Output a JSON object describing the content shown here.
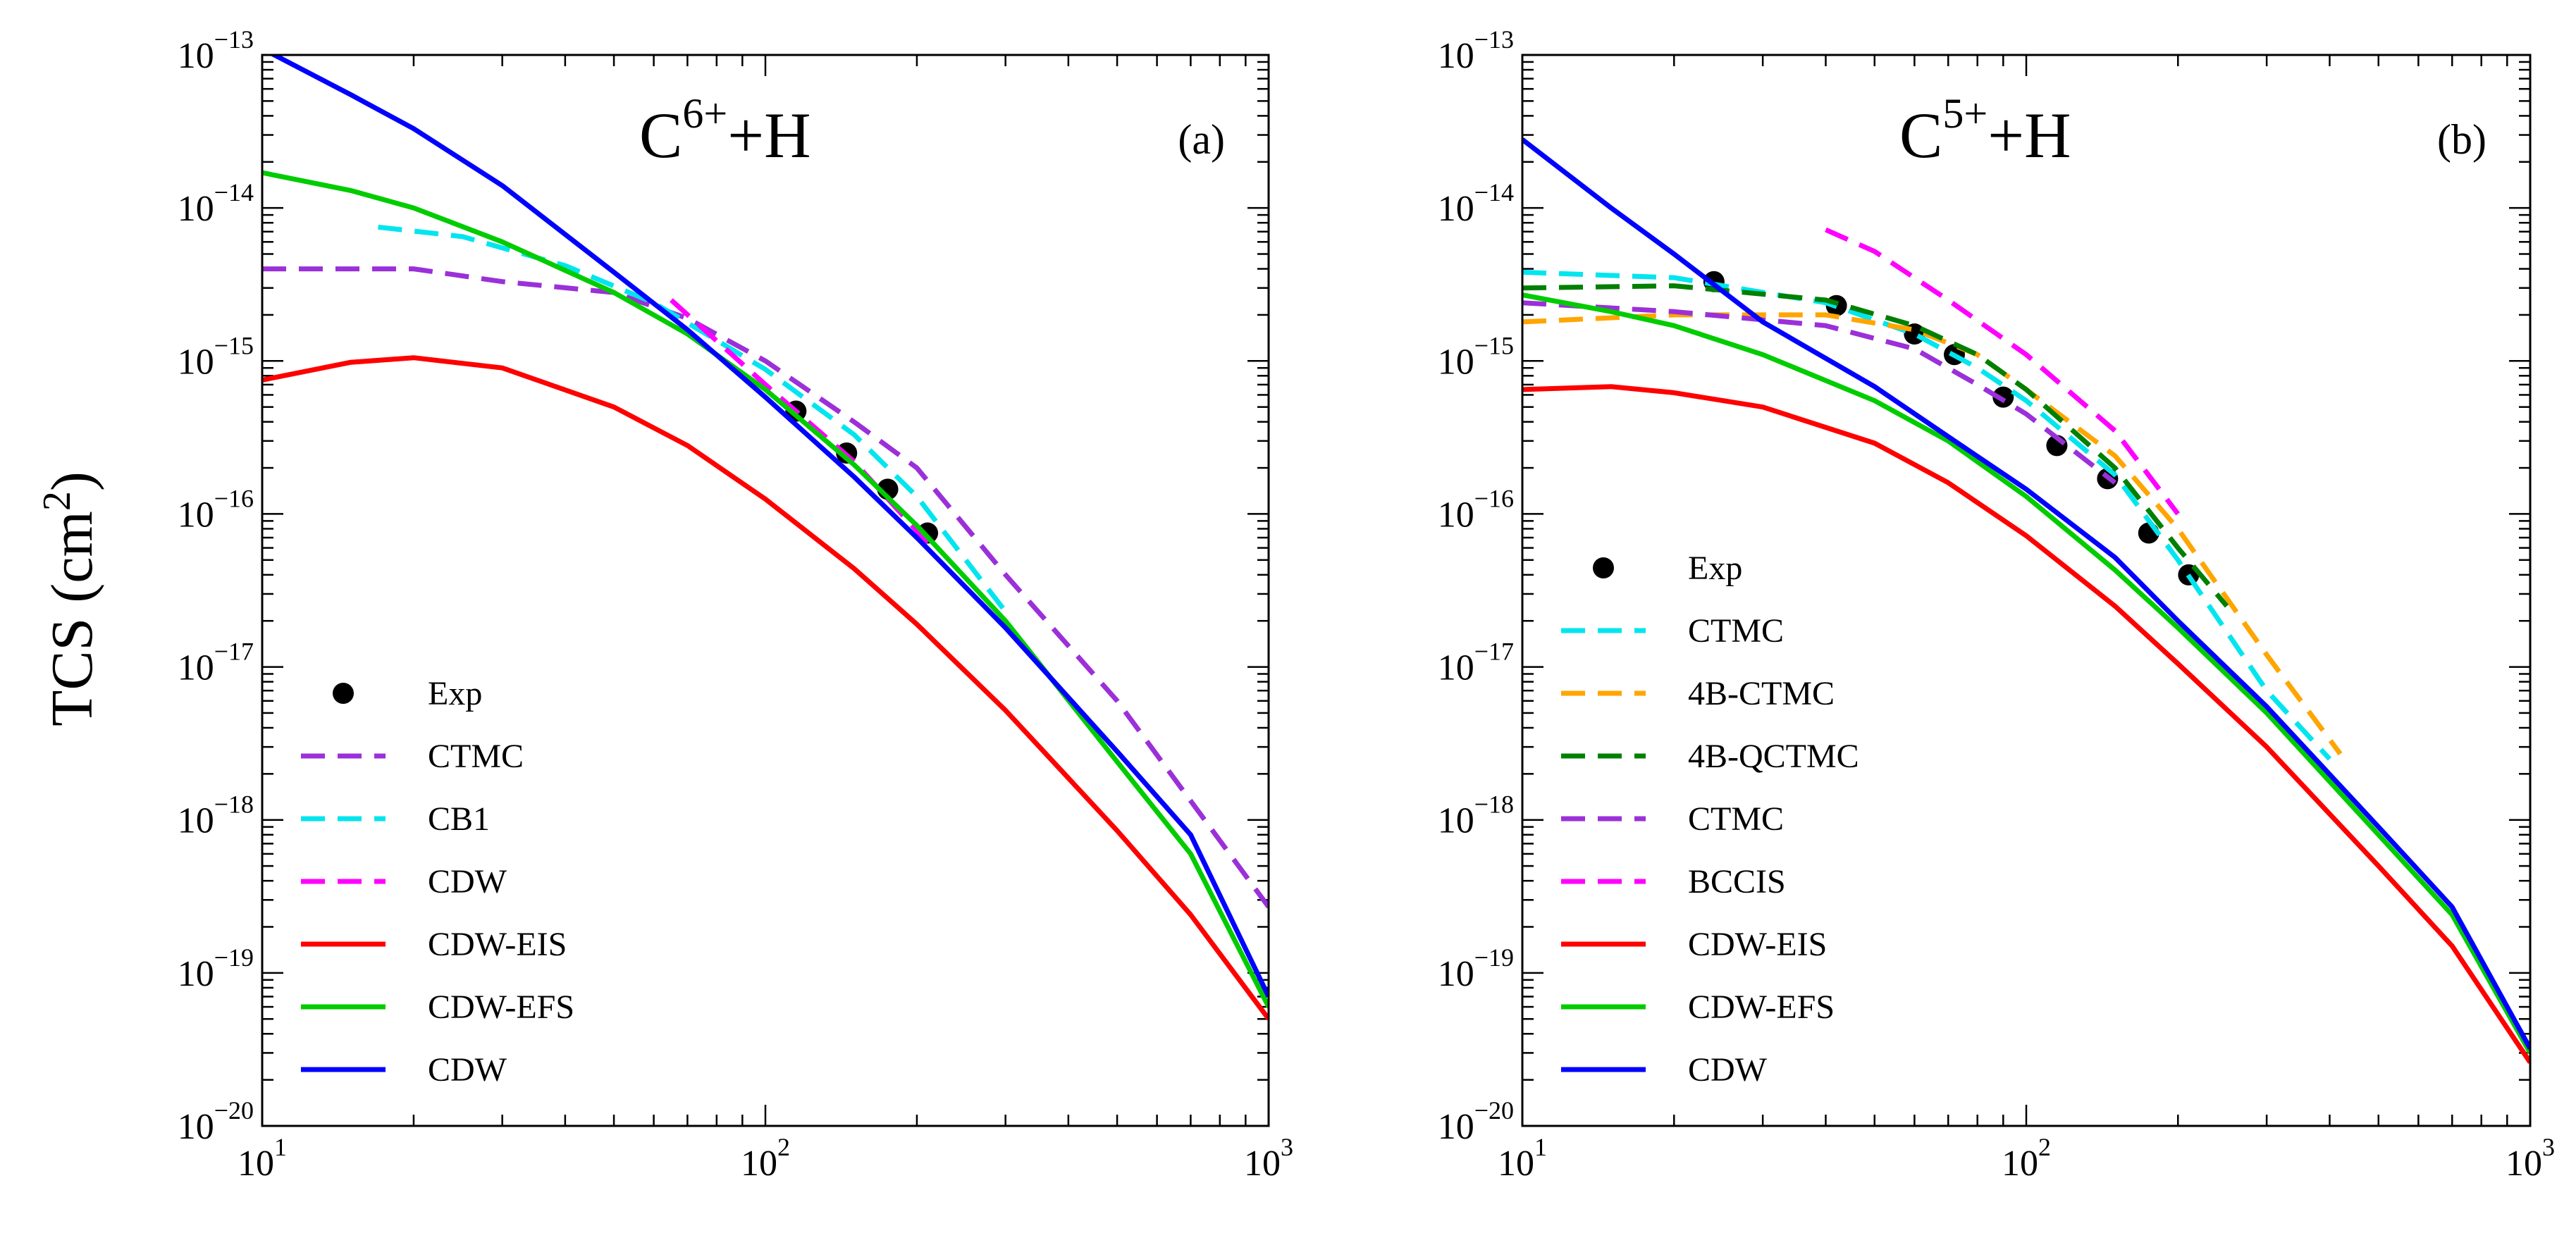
{
  "figure": {
    "ylabel_main": "TCS (cm",
    "ylabel_sup": "2",
    "ylabel_close": ")"
  },
  "chart_data": [
    {
      "type": "line",
      "panel": "(a)",
      "title": {
        "base": "C",
        "sup": "6+",
        "tail": "+H"
      },
      "xscale": "log",
      "yscale": "log",
      "xlim": [
        10,
        1000
      ],
      "ylim": [
        1e-20,
        1e-13
      ],
      "xlabel": "",
      "ylabel": "TCS (cm²)",
      "x_ticks": [
        {
          "base": "10",
          "exp": "1",
          "v": 10
        },
        {
          "base": "10",
          "exp": "2",
          "v": 100
        },
        {
          "base": "10",
          "exp": "3",
          "v": 1000
        }
      ],
      "y_ticks": [
        {
          "base": "10",
          "exp": "−20",
          "v": 1e-20
        },
        {
          "base": "10",
          "exp": "−19",
          "v": 1e-19
        },
        {
          "base": "10",
          "exp": "−18",
          "v": 1e-18
        },
        {
          "base": "10",
          "exp": "−17",
          "v": 1e-17
        },
        {
          "base": "10",
          "exp": "−16",
          "v": 1e-16
        },
        {
          "base": "10",
          "exp": "−15",
          "v": 1e-15
        },
        {
          "base": "10",
          "exp": "−14",
          "v": 1e-14
        },
        {
          "base": "10",
          "exp": "−13",
          "v": 1e-13
        }
      ],
      "legend_position": "bottom-left",
      "series": [
        {
          "name": "Exp",
          "style": "marker",
          "color": "#000000",
          "x": [
            115,
            145,
            175,
            210
          ],
          "y": [
            4.7e-16,
            2.5e-16,
            1.45e-16,
            7.5e-17
          ]
        },
        {
          "name": "CTMC",
          "style": "dashed",
          "color": "#9b30d9",
          "x": [
            10,
            20,
            30,
            50,
            70,
            100,
            150,
            200,
            300,
            500,
            1000
          ],
          "y": [
            4e-15,
            4e-15,
            3.3e-15,
            2.8e-15,
            1.9e-15,
            1e-15,
            4e-16,
            2e-16,
            4e-17,
            6e-18,
            2.7e-19
          ]
        },
        {
          "name": "CB1",
          "style": "dashed",
          "color": "#00e5ee",
          "x": [
            17,
            25,
            40,
            60,
            100,
            150,
            200,
            300
          ],
          "y": [
            7.5e-15,
            6.5e-15,
            4.2e-15,
            2.4e-15,
            8.8e-16,
            3.3e-16,
            1.3e-16,
            2.3e-17
          ]
        },
        {
          "name": "CDW",
          "style": "dashed",
          "color": "#ff00ff",
          "x": [
            65,
            100,
            150,
            210
          ],
          "y": [
            2.5e-15,
            7e-16,
            2.2e-16,
            6.5e-17
          ]
        },
        {
          "name": "CDW-EIS",
          "style": "solid",
          "color": "#ff0000",
          "x": [
            10,
            15,
            20,
            30,
            50,
            70,
            100,
            150,
            200,
            300,
            500,
            700,
            1000
          ],
          "y": [
            7.5e-16,
            9.8e-16,
            1.05e-15,
            9e-16,
            5e-16,
            2.8e-16,
            1.25e-16,
            4.4e-17,
            1.9e-17,
            5.2e-18,
            8.5e-19,
            2.4e-19,
            5e-20
          ]
        },
        {
          "name": "CDW-EFS",
          "style": "solid",
          "color": "#00cc00",
          "x": [
            10,
            15,
            20,
            30,
            50,
            70,
            100,
            150,
            200,
            300,
            500,
            700,
            1000
          ],
          "y": [
            1.7e-14,
            1.3e-14,
            1e-14,
            6e-15,
            2.8e-15,
            1.5e-15,
            6.5e-16,
            2.1e-16,
            8.4e-17,
            2e-17,
            2.4e-18,
            6e-19,
            6e-20
          ]
        },
        {
          "name": "CDW",
          "style": "solid",
          "color": "#0000ff",
          "x": [
            10,
            15,
            20,
            30,
            50,
            70,
            100,
            150,
            200,
            300,
            500,
            700,
            1000
          ],
          "y": [
            1.1e-13,
            5.5e-14,
            3.3e-14,
            1.4e-14,
            3.8e-15,
            1.6e-15,
            5.8e-16,
            1.75e-16,
            7e-17,
            1.8e-17,
            2.8e-18,
            8e-19,
            7e-20
          ]
        }
      ]
    },
    {
      "type": "line",
      "panel": "(b)",
      "title": {
        "base": "C",
        "sup": "5+",
        "tail": "+H"
      },
      "xscale": "log",
      "yscale": "log",
      "xlim": [
        10,
        1000
      ],
      "ylim": [
        1e-20,
        1e-13
      ],
      "xlabel": "",
      "ylabel": "",
      "x_ticks": [
        {
          "base": "10",
          "exp": "1",
          "v": 10
        },
        {
          "base": "10",
          "exp": "2",
          "v": 100
        },
        {
          "base": "10",
          "exp": "3",
          "v": 1000
        }
      ],
      "y_ticks": [
        {
          "base": "10",
          "exp": "−20",
          "v": 1e-20
        },
        {
          "base": "10",
          "exp": "−19",
          "v": 1e-19
        },
        {
          "base": "10",
          "exp": "−18",
          "v": 1e-18
        },
        {
          "base": "10",
          "exp": "−17",
          "v": 1e-17
        },
        {
          "base": "10",
          "exp": "−16",
          "v": 1e-16
        },
        {
          "base": "10",
          "exp": "−15",
          "v": 1e-15
        },
        {
          "base": "10",
          "exp": "−14",
          "v": 1e-14
        },
        {
          "base": "10",
          "exp": "−13",
          "v": 1e-13
        }
      ],
      "legend_position": "bottom-left",
      "series": [
        {
          "name": "Exp",
          "style": "marker",
          "color": "#000000",
          "x": [
            24,
            42,
            60,
            72,
            90,
            115,
            145,
            175,
            210
          ],
          "y": [
            3.3e-15,
            2.3e-15,
            1.5e-15,
            1.1e-15,
            5.8e-16,
            2.8e-16,
            1.7e-16,
            7.5e-17,
            4e-17
          ]
        },
        {
          "name": "CTMC",
          "style": "dashed",
          "color": "#00e5ee",
          "x": [
            10,
            20,
            40,
            60,
            80,
            100,
            150,
            200,
            300,
            400
          ],
          "y": [
            3.8e-15,
            3.5e-15,
            2.4e-15,
            1.5e-15,
            9e-16,
            5.5e-16,
            1.8e-16,
            5e-17,
            7e-18,
            2.5e-18
          ]
        },
        {
          "name": "4B-CTMC",
          "style": "dashed",
          "color": "#ffa500",
          "x": [
            10,
            20,
            40,
            60,
            80,
            100,
            150,
            200,
            300,
            420
          ],
          "y": [
            1.8e-15,
            2e-15,
            2e-15,
            1.6e-15,
            1.1e-15,
            6.5e-16,
            2.4e-16,
            8e-17,
            1.2e-17,
            2.7e-18
          ]
        },
        {
          "name": "4B-QCTMC",
          "style": "dashed",
          "color": "#008000",
          "x": [
            10,
            20,
            40,
            60,
            80,
            100,
            150,
            200,
            250
          ],
          "y": [
            3e-15,
            3.1e-15,
            2.5e-15,
            1.7e-15,
            1.1e-15,
            6.5e-16,
            2e-16,
            6e-17,
            2.5e-17
          ]
        },
        {
          "name": "CTMC",
          "style": "dashed",
          "color": "#9b30d9",
          "x": [
            10,
            20,
            40,
            60,
            80,
            100,
            150
          ],
          "y": [
            2.4e-15,
            2.1e-15,
            1.7e-15,
            1.2e-15,
            7e-16,
            4.5e-16,
            1.6e-16
          ]
        },
        {
          "name": "BCCIS",
          "style": "dashed",
          "color": "#ff00ff",
          "x": [
            40,
            50,
            70,
            100,
            150,
            200
          ],
          "y": [
            7.2e-15,
            5.2e-15,
            2.5e-15,
            1.1e-15,
            3.5e-16,
            1e-16
          ]
        },
        {
          "name": "CDW-EIS",
          "style": "solid",
          "color": "#ff0000",
          "x": [
            10,
            15,
            20,
            30,
            50,
            70,
            100,
            150,
            200,
            300,
            500,
            700,
            1000
          ],
          "y": [
            6.5e-16,
            6.8e-16,
            6.2e-16,
            5e-16,
            2.9e-16,
            1.6e-16,
            7.2e-17,
            2.5e-17,
            1.05e-17,
            3e-18,
            5e-19,
            1.5e-19,
            2.6e-20
          ]
        },
        {
          "name": "CDW-EFS",
          "style": "solid",
          "color": "#00cc00",
          "x": [
            10,
            15,
            20,
            30,
            50,
            70,
            100,
            150,
            200,
            300,
            500,
            700,
            1000
          ],
          "y": [
            2.7e-15,
            2.1e-15,
            1.7e-15,
            1.1e-15,
            5.5e-16,
            3e-16,
            1.3e-16,
            4.3e-17,
            1.8e-17,
            5e-18,
            8e-19,
            2.4e-19,
            3e-20
          ]
        },
        {
          "name": "CDW",
          "style": "solid",
          "color": "#0000ff",
          "x": [
            10,
            15,
            20,
            30,
            50,
            70,
            100,
            150,
            200,
            300,
            500,
            700,
            1000
          ],
          "y": [
            2.8e-14,
            1e-14,
            5e-15,
            1.8e-15,
            6.8e-16,
            3.2e-16,
            1.45e-16,
            5.2e-17,
            2e-17,
            5.5e-18,
            9e-19,
            2.7e-19,
            3.2e-20
          ]
        }
      ]
    }
  ]
}
